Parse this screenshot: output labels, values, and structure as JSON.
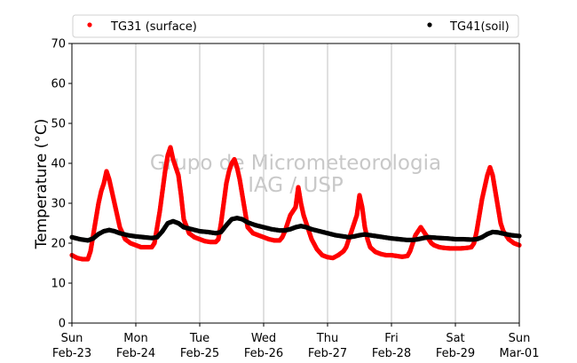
{
  "chart_data": {
    "type": "scatter",
    "ylabel": "Temperature (°C)",
    "ylim": [
      0,
      70
    ],
    "yticks": [
      0,
      10,
      20,
      30,
      40,
      50,
      60,
      70
    ],
    "xlim": [
      "2020-02-23T00:00",
      "2020-03-01T00:00"
    ],
    "xticks": [
      {
        "day": "Sun",
        "date": "Feb-23"
      },
      {
        "day": "Mon",
        "date": "Feb-24"
      },
      {
        "day": "Tue",
        "date": "Feb-25"
      },
      {
        "day": "Wed",
        "date": "Feb-26"
      },
      {
        "day": "Thu",
        "date": "Feb-27"
      },
      {
        "day": "Fri",
        "date": "Feb-28"
      },
      {
        "day": "Sat",
        "date": "Feb-29"
      },
      {
        "day": "Sun",
        "date": "Mar-01"
      }
    ],
    "grid": "vertical",
    "legend_position": "top",
    "watermark": [
      "Grupo de Micrometeorologia",
      "IAG / USP"
    ],
    "series": [
      {
        "name": "TG31 (surface)",
        "color": "#ff0000",
        "points": [
          [
            "2020-02-23T00:00",
            17
          ],
          [
            "2020-02-23T02:00",
            16.3
          ],
          [
            "2020-02-23T04:00",
            16
          ],
          [
            "2020-02-23T06:00",
            16
          ],
          [
            "2020-02-23T07:00",
            18
          ],
          [
            "2020-02-23T08:00",
            22
          ],
          [
            "2020-02-23T09:00",
            26
          ],
          [
            "2020-02-23T10:00",
            30
          ],
          [
            "2020-02-23T11:00",
            33
          ],
          [
            "2020-02-23T12:00",
            35
          ],
          [
            "2020-02-23T13:00",
            38
          ],
          [
            "2020-02-23T14:00",
            36
          ],
          [
            "2020-02-23T15:00",
            33
          ],
          [
            "2020-02-23T16:00",
            30
          ],
          [
            "2020-02-23T17:00",
            27
          ],
          [
            "2020-02-23T18:00",
            24
          ],
          [
            "2020-02-23T20:00",
            21
          ],
          [
            "2020-02-23T22:00",
            20
          ],
          [
            "2020-02-24T00:00",
            19.5
          ],
          [
            "2020-02-24T02:00",
            19
          ],
          [
            "2020-02-24T04:00",
            19
          ],
          [
            "2020-02-24T06:00",
            19
          ],
          [
            "2020-02-24T07:00",
            20
          ],
          [
            "2020-02-24T08:00",
            24
          ],
          [
            "2020-02-24T09:00",
            28
          ],
          [
            "2020-02-24T10:00",
            33
          ],
          [
            "2020-02-24T11:00",
            38
          ],
          [
            "2020-02-24T12:00",
            42
          ],
          [
            "2020-02-24T13:00",
            44
          ],
          [
            "2020-02-24T14:00",
            41
          ],
          [
            "2020-02-24T15:00",
            39
          ],
          [
            "2020-02-24T16:00",
            37
          ],
          [
            "2020-02-24T17:00",
            32
          ],
          [
            "2020-02-24T18:00",
            26
          ],
          [
            "2020-02-24T20:00",
            22.5
          ],
          [
            "2020-02-24T22:00",
            21.5
          ],
          [
            "2020-02-25T00:00",
            21
          ],
          [
            "2020-02-25T02:00",
            20.5
          ],
          [
            "2020-02-25T04:00",
            20.3
          ],
          [
            "2020-02-25T06:00",
            20.3
          ],
          [
            "2020-02-25T07:00",
            21
          ],
          [
            "2020-02-25T08:00",
            25
          ],
          [
            "2020-02-25T09:00",
            30
          ],
          [
            "2020-02-25T10:00",
            35
          ],
          [
            "2020-02-25T11:00",
            38
          ],
          [
            "2020-02-25T12:00",
            40
          ],
          [
            "2020-02-25T13:00",
            41
          ],
          [
            "2020-02-25T14:00",
            39
          ],
          [
            "2020-02-25T15:00",
            36
          ],
          [
            "2020-02-25T16:00",
            32
          ],
          [
            "2020-02-25T17:00",
            28
          ],
          [
            "2020-02-25T18:00",
            24
          ],
          [
            "2020-02-25T20:00",
            22.5
          ],
          [
            "2020-02-25T22:00",
            22
          ],
          [
            "2020-02-26T00:00",
            21.5
          ],
          [
            "2020-02-26T02:00",
            21
          ],
          [
            "2020-02-26T04:00",
            20.7
          ],
          [
            "2020-02-26T06:00",
            20.7
          ],
          [
            "2020-02-26T07:00",
            21.5
          ],
          [
            "2020-02-26T08:00",
            23
          ],
          [
            "2020-02-26T09:00",
            25
          ],
          [
            "2020-02-26T10:00",
            27
          ],
          [
            "2020-02-26T11:00",
            28
          ],
          [
            "2020-02-26T12:00",
            29
          ],
          [
            "2020-02-26T13:00",
            34
          ],
          [
            "2020-02-26T14:00",
            30
          ],
          [
            "2020-02-26T15:00",
            27
          ],
          [
            "2020-02-26T16:00",
            25
          ],
          [
            "2020-02-26T17:00",
            23
          ],
          [
            "2020-02-26T18:00",
            21
          ],
          [
            "2020-02-26T20:00",
            18.5
          ],
          [
            "2020-02-26T22:00",
            17
          ],
          [
            "2020-02-27T00:00",
            16.5
          ],
          [
            "2020-02-27T02:00",
            16.3
          ],
          [
            "2020-02-27T04:00",
            17
          ],
          [
            "2020-02-27T06:00",
            18
          ],
          [
            "2020-02-27T07:00",
            19
          ],
          [
            "2020-02-27T08:00",
            21
          ],
          [
            "2020-02-27T09:00",
            23
          ],
          [
            "2020-02-27T10:00",
            25
          ],
          [
            "2020-02-27T11:00",
            27
          ],
          [
            "2020-02-27T12:00",
            32
          ],
          [
            "2020-02-27T13:00",
            29
          ],
          [
            "2020-02-27T14:00",
            24
          ],
          [
            "2020-02-27T15:00",
            21
          ],
          [
            "2020-02-27T16:00",
            19
          ],
          [
            "2020-02-27T18:00",
            17.8
          ],
          [
            "2020-02-27T20:00",
            17.3
          ],
          [
            "2020-02-27T22:00",
            17
          ],
          [
            "2020-02-28T00:00",
            17
          ],
          [
            "2020-02-28T02:00",
            16.8
          ],
          [
            "2020-02-28T04:00",
            16.6
          ],
          [
            "2020-02-28T06:00",
            16.8
          ],
          [
            "2020-02-28T07:00",
            18
          ],
          [
            "2020-02-28T08:00",
            20
          ],
          [
            "2020-02-28T09:00",
            22
          ],
          [
            "2020-02-28T10:00",
            23
          ],
          [
            "2020-02-28T11:00",
            24
          ],
          [
            "2020-02-28T12:00",
            23
          ],
          [
            "2020-02-28T13:00",
            22
          ],
          [
            "2020-02-28T14:00",
            21
          ],
          [
            "2020-02-28T15:00",
            20
          ],
          [
            "2020-02-28T16:00",
            19.5
          ],
          [
            "2020-02-28T18:00",
            19
          ],
          [
            "2020-02-28T20:00",
            18.8
          ],
          [
            "2020-02-28T22:00",
            18.7
          ],
          [
            "2020-02-29T00:00",
            18.7
          ],
          [
            "2020-02-29T02:00",
            18.7
          ],
          [
            "2020-02-29T04:00",
            18.8
          ],
          [
            "2020-02-29T06:00",
            19
          ],
          [
            "2020-02-29T07:00",
            20
          ],
          [
            "2020-02-29T08:00",
            23
          ],
          [
            "2020-02-29T09:00",
            27
          ],
          [
            "2020-02-29T10:00",
            31
          ],
          [
            "2020-02-29T11:00",
            34
          ],
          [
            "2020-02-29T12:00",
            37
          ],
          [
            "2020-02-29T13:00",
            39
          ],
          [
            "2020-02-29T14:00",
            37
          ],
          [
            "2020-02-29T15:00",
            33
          ],
          [
            "2020-02-29T16:00",
            29
          ],
          [
            "2020-02-29T17:00",
            25
          ],
          [
            "2020-02-29T18:00",
            23
          ],
          [
            "2020-02-29T20:00",
            21
          ],
          [
            "2020-02-29T22:00",
            20
          ],
          [
            "2020-03-01T00:00",
            19.5
          ]
        ]
      },
      {
        "name": "TG41(soil)",
        "color": "#000000",
        "points": [
          [
            "2020-02-23T00:00",
            21.5
          ],
          [
            "2020-02-23T03:00",
            21
          ],
          [
            "2020-02-23T06:00",
            20.7
          ],
          [
            "2020-02-23T08:00",
            21.2
          ],
          [
            "2020-02-23T10:00",
            22.3
          ],
          [
            "2020-02-23T12:00",
            23
          ],
          [
            "2020-02-23T14:00",
            23.3
          ],
          [
            "2020-02-23T16:00",
            23
          ],
          [
            "2020-02-23T18:00",
            22.5
          ],
          [
            "2020-02-23T21:00",
            22
          ],
          [
            "2020-02-24T00:00",
            21.7
          ],
          [
            "2020-02-24T03:00",
            21.5
          ],
          [
            "2020-02-24T06:00",
            21.3
          ],
          [
            "2020-02-24T08:00",
            21.5
          ],
          [
            "2020-02-24T10:00",
            23
          ],
          [
            "2020-02-24T12:00",
            25
          ],
          [
            "2020-02-24T14:00",
            25.5
          ],
          [
            "2020-02-24T16:00",
            25
          ],
          [
            "2020-02-24T18:00",
            24
          ],
          [
            "2020-02-24T21:00",
            23.5
          ],
          [
            "2020-02-25T00:00",
            23
          ],
          [
            "2020-02-25T03:00",
            22.8
          ],
          [
            "2020-02-25T06:00",
            22.5
          ],
          [
            "2020-02-25T08:00",
            22.8
          ],
          [
            "2020-02-25T10:00",
            24.5
          ],
          [
            "2020-02-25T12:00",
            26
          ],
          [
            "2020-02-25T14:00",
            26.3
          ],
          [
            "2020-02-25T16:00",
            26
          ],
          [
            "2020-02-25T18:00",
            25.2
          ],
          [
            "2020-02-25T21:00",
            24.5
          ],
          [
            "2020-02-26T00:00",
            24
          ],
          [
            "2020-02-26T03:00",
            23.5
          ],
          [
            "2020-02-26T06:00",
            23.2
          ],
          [
            "2020-02-26T08:00",
            23.2
          ],
          [
            "2020-02-26T10:00",
            23.5
          ],
          [
            "2020-02-26T12:00",
            24
          ],
          [
            "2020-02-26T14:00",
            24.3
          ],
          [
            "2020-02-26T16:00",
            24
          ],
          [
            "2020-02-26T18:00",
            23.5
          ],
          [
            "2020-02-26T21:00",
            23
          ],
          [
            "2020-02-27T00:00",
            22.5
          ],
          [
            "2020-02-27T03:00",
            22
          ],
          [
            "2020-02-27T06:00",
            21.7
          ],
          [
            "2020-02-27T08:00",
            21.5
          ],
          [
            "2020-02-27T10:00",
            21.7
          ],
          [
            "2020-02-27T12:00",
            22
          ],
          [
            "2020-02-27T14:00",
            22.2
          ],
          [
            "2020-02-27T16:00",
            22
          ],
          [
            "2020-02-27T18:00",
            21.8
          ],
          [
            "2020-02-27T21:00",
            21.5
          ],
          [
            "2020-02-28T00:00",
            21.2
          ],
          [
            "2020-02-28T03:00",
            21
          ],
          [
            "2020-02-28T06:00",
            20.8
          ],
          [
            "2020-02-28T08:00",
            20.8
          ],
          [
            "2020-02-28T10:00",
            21
          ],
          [
            "2020-02-28T12:00",
            21.3
          ],
          [
            "2020-02-28T14:00",
            21.5
          ],
          [
            "2020-02-28T16:00",
            21.4
          ],
          [
            "2020-02-28T18:00",
            21.3
          ],
          [
            "2020-02-28T21:00",
            21.2
          ],
          [
            "2020-02-29T00:00",
            21
          ],
          [
            "2020-02-29T03:00",
            21
          ],
          [
            "2020-02-29T06:00",
            20.9
          ],
          [
            "2020-02-29T08:00",
            21
          ],
          [
            "2020-02-29T10:00",
            21.5
          ],
          [
            "2020-02-29T12:00",
            22.3
          ],
          [
            "2020-02-29T14:00",
            22.8
          ],
          [
            "2020-02-29T16:00",
            22.7
          ],
          [
            "2020-02-29T18:00",
            22.4
          ],
          [
            "2020-02-29T21:00",
            22
          ],
          [
            "2020-03-01T00:00",
            21.8
          ]
        ]
      }
    ]
  }
}
